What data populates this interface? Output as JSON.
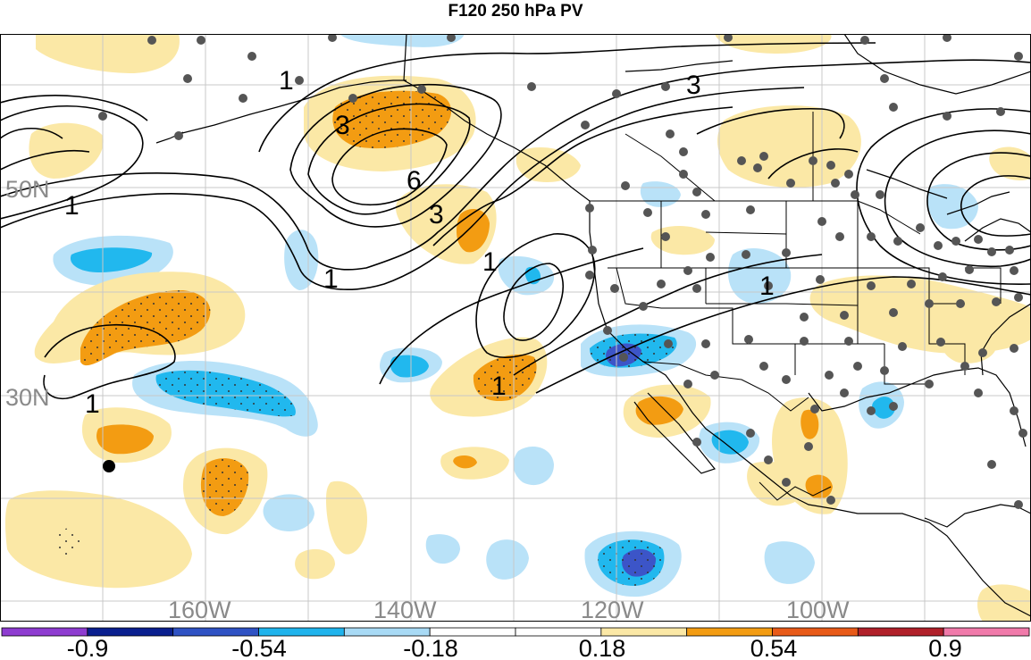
{
  "title": "F120 250 hPa PV",
  "map": {
    "longitude_labels": [
      "160W",
      "140W",
      "120W",
      "100W"
    ],
    "latitude_labels": [
      "50N",
      "30N"
    ],
    "contour_labels": [
      "1",
      "1",
      "1",
      "1",
      "1",
      "1",
      "1",
      "3",
      "3",
      "3",
      "6"
    ],
    "colors": {
      "light_blue": "#b9e2f8",
      "mid_blue": "#21b8ee",
      "dark_blue": "#3c55c8",
      "light_orange": "#fbe8a6",
      "orange": "#f39c12",
      "land_line": "#000000",
      "grid_line": "#c8c8c8",
      "station_dot": "#555555"
    }
  },
  "colorbar": {
    "tick_labels": [
      "-0.9",
      "-0.54",
      "-0.18",
      "0.18",
      "0.54",
      "0.9"
    ],
    "colors": [
      "#8e3cd0",
      "#0a1f8f",
      "#2f52c4",
      "#1fb3ec",
      "#a8daf5",
      "#ffffff",
      "#ffffff",
      "#fbe8a6",
      "#f39c12",
      "#e85a18",
      "#b0202a",
      "#f07aaa"
    ]
  }
}
